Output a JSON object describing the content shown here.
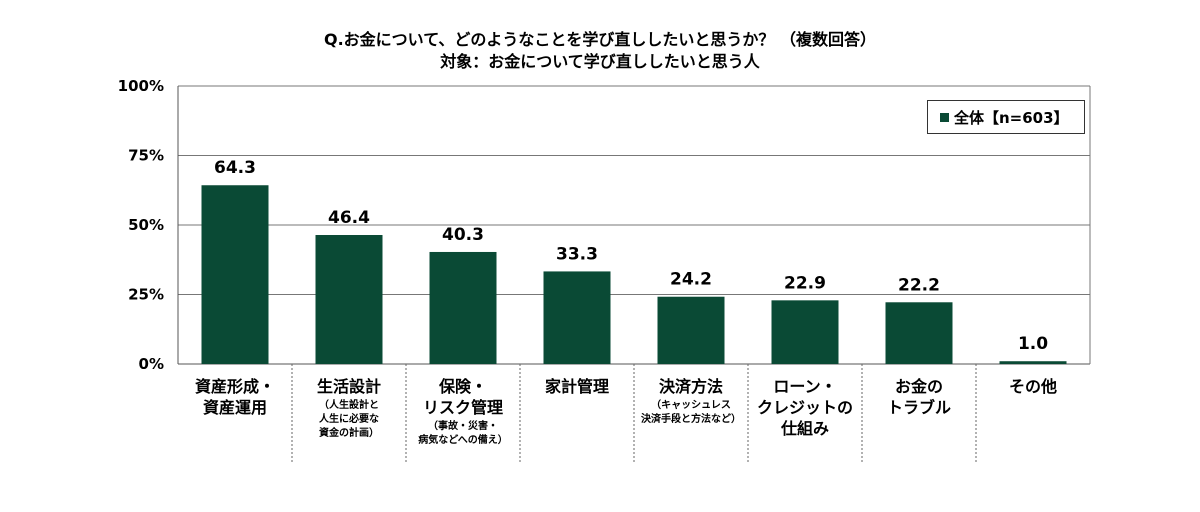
{
  "chart_data": {
    "type": "bar",
    "title": "Q.お金について、どのようなことを学び直ししたいと思うか？ （複数回答）",
    "subtitle": "対象：お金について学び直ししたいと思う人",
    "categories": [
      {
        "label": "資産形成・\n資産運用",
        "note": ""
      },
      {
        "label": "生活設計",
        "note": "（人生設計と\n人生に必要な\n資金の計画）"
      },
      {
        "label": "保険・\nリスク管理",
        "note": "（事故・災害・\n病気などへの備え）"
      },
      {
        "label": "家計管理",
        "note": ""
      },
      {
        "label": "決済方法",
        "note": "（キャッシュレス\n決済手段と方法など）"
      },
      {
        "label": "ローン・\nクレジットの\n仕組み",
        "note": ""
      },
      {
        "label": "お金の\nトラブル",
        "note": ""
      },
      {
        "label": "その他",
        "note": ""
      }
    ],
    "series": [
      {
        "name": "全体【n=603】",
        "values": [
          64.3,
          46.4,
          40.3,
          33.3,
          24.2,
          22.9,
          22.2,
          1.0
        ]
      }
    ],
    "value_labels": [
      "64.3",
      "46.4",
      "40.3",
      "33.3",
      "24.2",
      "22.9",
      "22.2",
      "1.0"
    ],
    "y_ticks": [
      "0%",
      "25%",
      "50%",
      "75%",
      "100%"
    ],
    "ylim": [
      0,
      100
    ],
    "grid": true,
    "legend_position": "top-right",
    "bar_color": "#0a4a35"
  }
}
